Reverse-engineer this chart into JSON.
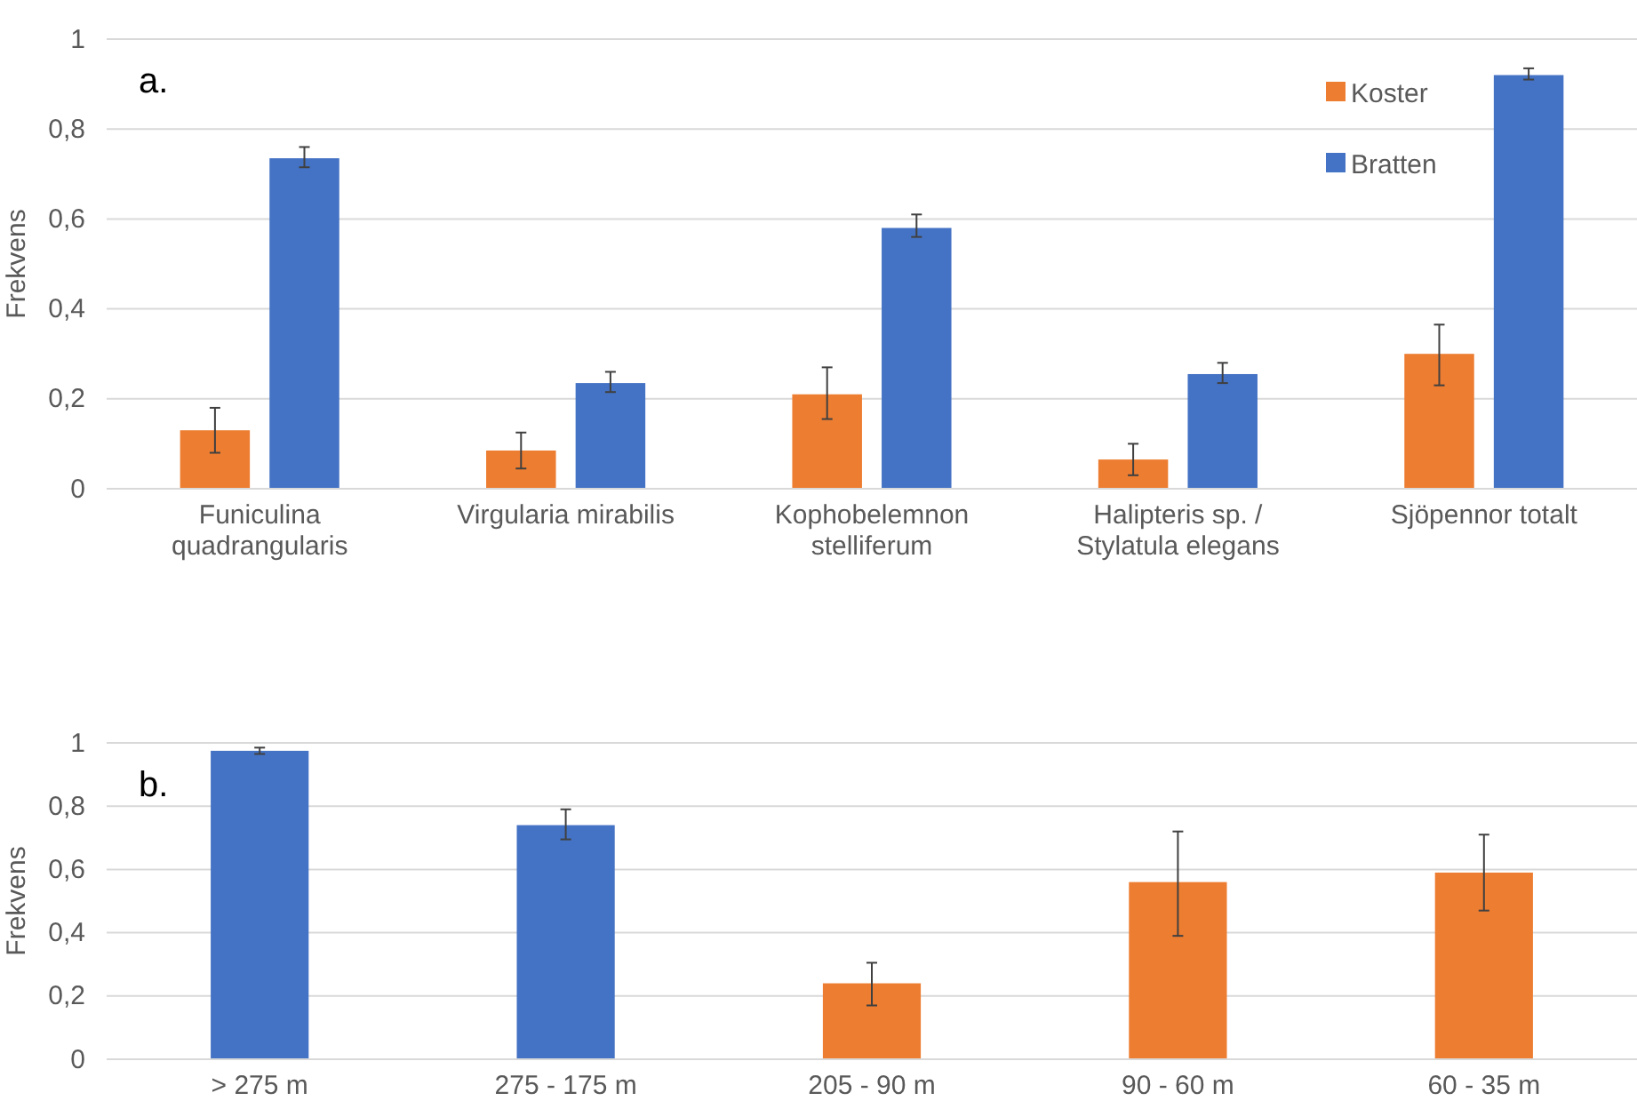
{
  "chart_data": [
    {
      "type": "bar",
      "ylabel": "Frekvens",
      "annotations": [
        "a."
      ],
      "categories": [
        "Funiculina quadrangularis",
        "Virgularia mirabilis",
        "Kophobelemnon stelliferum",
        "Halipteris sp. / Stylatula elegans",
        "Sjöpennor totalt"
      ],
      "series": [
        {
          "name": "Koster",
          "color": "#ed7d31",
          "values": [
            0.13,
            0.085,
            0.21,
            0.065,
            0.3
          ],
          "errors": [
            [
              0.08,
              0.18
            ],
            [
              0.045,
              0.125
            ],
            [
              0.155,
              0.27
            ],
            [
              0.03,
              0.1
            ],
            [
              0.23,
              0.365
            ]
          ]
        },
        {
          "name": "Bratten",
          "color": "#4472c4",
          "values": [
            0.735,
            0.235,
            0.58,
            0.255,
            0.92
          ],
          "errors": [
            [
              0.715,
              0.76
            ],
            [
              0.215,
              0.26
            ],
            [
              0.56,
              0.61
            ],
            [
              0.235,
              0.28
            ],
            [
              0.91,
              0.935
            ]
          ]
        }
      ],
      "ylim": [
        0,
        1
      ],
      "yticks": [
        {
          "value": 0,
          "label": "0"
        },
        {
          "value": 0.2,
          "label": "0,2"
        },
        {
          "value": 0.4,
          "label": "0,4"
        },
        {
          "value": 0.6,
          "label": "0,6"
        },
        {
          "value": 0.8,
          "label": "0,8"
        },
        {
          "value": 1,
          "label": "1"
        }
      ],
      "grid": "y",
      "legend": "top right"
    },
    {
      "type": "bar",
      "ylabel": "Frekvens",
      "annotations": [
        "b."
      ],
      "categories": [
        "> 275 m",
        "275 - 175 m",
        "205 - 90 m",
        "90 - 60 m",
        "60 - 35 m"
      ],
      "values": [
        0.975,
        0.74,
        0.24,
        0.56,
        0.59
      ],
      "colors": [
        "#4472c4",
        "#4472c4",
        "#ed7d31",
        "#ed7d31",
        "#ed7d31"
      ],
      "errors": [
        [
          0.965,
          0.985
        ],
        [
          0.695,
          0.79
        ],
        [
          0.17,
          0.305
        ],
        [
          0.39,
          0.72
        ],
        [
          0.47,
          0.71
        ]
      ],
      "ylim": [
        0,
        1
      ],
      "yticks": [
        {
          "value": 0,
          "label": "0"
        },
        {
          "value": 0.2,
          "label": "0,2"
        },
        {
          "value": 0.4,
          "label": "0,4"
        },
        {
          "value": 0.6,
          "label": "0,6"
        },
        {
          "value": 0.8,
          "label": "0,8"
        },
        {
          "value": 1,
          "label": "1"
        }
      ],
      "grid": "y"
    }
  ]
}
